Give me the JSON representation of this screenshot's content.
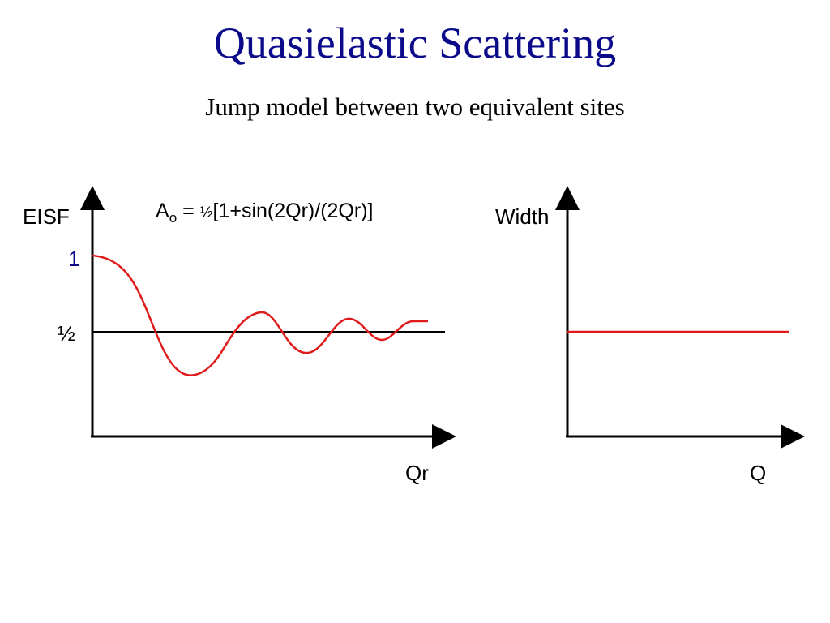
{
  "slide": {
    "title": "Quasielastic Scattering",
    "subtitle": "Jump model between two equivalent sites"
  },
  "colors": {
    "title": "#0a0a8a",
    "curve": "#e01b1b",
    "axis": "#000000",
    "one_label": "#0a0a8a"
  },
  "left_plot": {
    "y_axis_label": "EISF",
    "x_axis_label": "Qr",
    "tick_one": "1",
    "tick_half": "½",
    "formula": {
      "lhs": "A",
      "lhs_sub": "o",
      "eq": " = ",
      "half": "½",
      "rhs": "[1+sin(2Qr)/(2Qr)]"
    }
  },
  "right_plot": {
    "y_axis_label": "Width",
    "x_axis_label": "Q"
  }
}
